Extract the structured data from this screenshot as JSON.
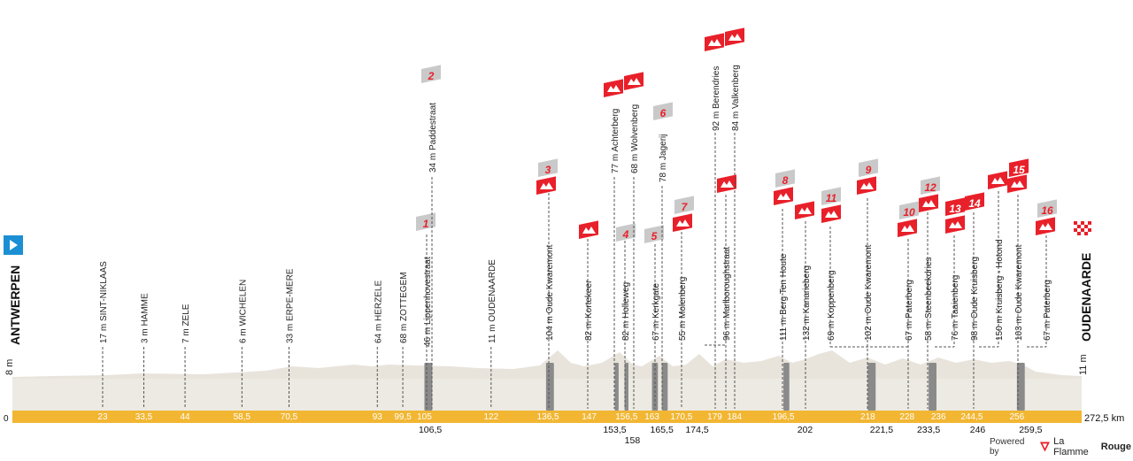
{
  "profile": {
    "km_axis_labels": [
      "0",
      "272,5 km"
    ],
    "profile_fill": "#e8e4dc",
    "axis_bar_color": "#f2b632",
    "cobble_color": "#8a8a8a",
    "climb_flag_color": "#e8202a",
    "cobble_flag_color": "#c9c9c9"
  },
  "start": {
    "alt": "8 m",
    "name": "ANTWERPEN"
  },
  "finish": {
    "alt": "11 m",
    "name": "OUDENAARDE"
  },
  "towns": [
    {
      "label": "17 m SINT-NIKLAAS",
      "km": 23
    },
    {
      "label": "3 m HAMME",
      "km": 33.5
    },
    {
      "label": "7 m ZELE",
      "km": 44
    },
    {
      "label": "6 m WICHELEN",
      "km": 58.5
    },
    {
      "label": "33 m ERPE-MERE",
      "km": 70.5
    },
    {
      "label": "64 m HERZELE",
      "km": 93
    },
    {
      "label": "68 m ZOTTEGEM",
      "km": 99.5
    },
    {
      "label": "11 m OUDENAARDE",
      "km": 122
    }
  ],
  "km_ticks_bar": [
    "23",
    "33,5",
    "44",
    "58,5",
    "70,5",
    "93",
    "99,5",
    "105",
    "122",
    "136,5",
    "147",
    "156,5",
    "163",
    "170,5",
    "179",
    "184",
    "196,5",
    "218",
    "228",
    "236",
    "244,5",
    "256"
  ],
  "km_ticks_below": [
    "106,5",
    "153,5",
    "158",
    "165,5",
    "174,5",
    "202",
    "221,5",
    "233,5",
    "246",
    "259,5"
  ],
  "cobbles": [
    {
      "label": "46 m Lippenhovestraat",
      "flag": "1"
    },
    {
      "label": "34 m Paddestraat",
      "flag": "2"
    },
    {
      "label": "82 m Holleweg",
      "flag": "4"
    },
    {
      "label": "67 m Kerkgate",
      "flag": "5"
    },
    {
      "label": "78 m Jagerij",
      "flag": "6"
    },
    {
      "label": "96 m Marlboroughstraat",
      "flag": ""
    }
  ],
  "climbs": [
    {
      "label": "104 m Oude Kwaremont",
      "flag": "3"
    },
    {
      "label": "82 m Kortekeer",
      "flag": ""
    },
    {
      "label": "77 m Achterberg",
      "flag": ""
    },
    {
      "label": "68 m Wolvenberg",
      "flag": ""
    },
    {
      "label": "55 m Molenberg",
      "flag": "7"
    },
    {
      "label": "92 m Berendries",
      "flag": ""
    },
    {
      "label": "84 m Valkenberg",
      "flag": ""
    },
    {
      "label": "111 m Berg Ten Houte",
      "flag": "8"
    },
    {
      "label": "132 m Kanarieberg",
      "flag": ""
    },
    {
      "label": "69 m Koppenberg",
      "flag": "11"
    },
    {
      "label": "102 m Oude Kwaremont",
      "flag": "9"
    },
    {
      "label": "67 m Paterberg",
      "flag": "10"
    },
    {
      "label": "58 m Steenbeekdries",
      "flag": "12"
    },
    {
      "label": "76 m Taaienberg",
      "flag": "13"
    },
    {
      "label": "98 m Oude Kruisberg",
      "flag": "14"
    },
    {
      "label": "150 m Kruisberg - Hotond",
      "flag": ""
    },
    {
      "label": "103 m Oude Kwaremont",
      "flag": "15"
    },
    {
      "label": "67 m Paterberg",
      "flag": "16"
    }
  ],
  "footer": {
    "powered_by": "Powered by",
    "brand_a": "La Flamme",
    "brand_b": "Rouge"
  }
}
